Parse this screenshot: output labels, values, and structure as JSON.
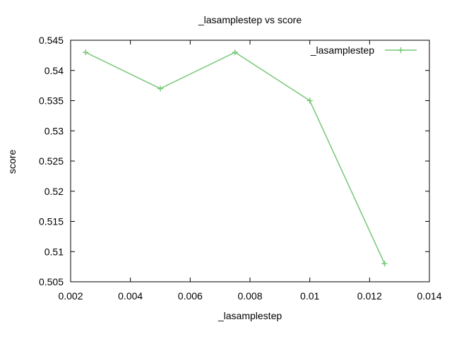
{
  "chart_data": {
    "type": "line",
    "title": "_lasamplestep vs score",
    "xlabel": "_lasamplestep",
    "ylabel": "score",
    "xlim": [
      0.002,
      0.014
    ],
    "ylim": [
      0.505,
      0.545
    ],
    "x_ticks": [
      "0.002",
      "0.004",
      "0.006",
      "0.008",
      "0.01",
      "0.012",
      "0.014"
    ],
    "y_ticks": [
      "0.505",
      "0.51",
      "0.515",
      "0.52",
      "0.525",
      "0.53",
      "0.535",
      "0.54",
      "0.545"
    ],
    "grid": false,
    "legend_position": "top-right",
    "series": [
      {
        "name": "_lasamplestep",
        "color": "#77c777",
        "marker": "plus",
        "x": [
          0.0025,
          0.005,
          0.0075,
          0.01,
          0.0125
        ],
        "y": [
          0.543,
          0.537,
          0.543,
          0.535,
          0.508
        ]
      }
    ]
  }
}
